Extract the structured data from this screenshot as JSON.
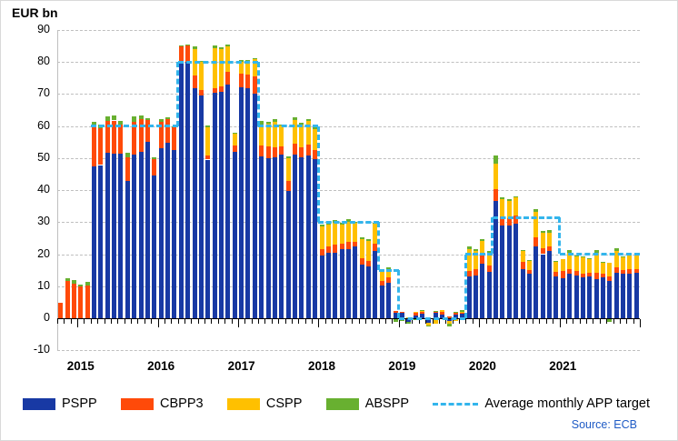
{
  "title": "EUR bn",
  "source": "Source: ECB",
  "colors": {
    "pspp": "#1839a4",
    "cbpp3": "#ff4a09",
    "cspp": "#ffc000",
    "abspp": "#68b030",
    "target_line": "#33b5ec",
    "grid": "#bfbfbf",
    "axis": "#000000",
    "source_text": "#1f5bc5",
    "figure_border": "#d9d9d9"
  },
  "legend": [
    {
      "label": "PSPP",
      "type": "swatch",
      "color": "#1839a4"
    },
    {
      "label": "CBPP3",
      "type": "swatch",
      "color": "#ff4a09"
    },
    {
      "label": "CSPP",
      "type": "swatch",
      "color": "#ffc000"
    },
    {
      "label": "ABSPP",
      "type": "swatch",
      "color": "#68b030"
    },
    {
      "label": "Average monthly APP target",
      "type": "dashed-line",
      "color": "#33b5ec"
    }
  ],
  "y_axis": {
    "ticks": [
      90,
      80,
      70,
      60,
      50,
      40,
      30,
      20,
      10,
      0,
      -10
    ],
    "min": -10,
    "max": 90
  },
  "x_axis": {
    "year_labels": [
      "2015",
      "2016",
      "2017",
      "2018",
      "2019",
      "2020",
      "2021"
    ]
  },
  "chart_data": {
    "type": "bar",
    "subtype": "stacked-monthly-bars-with-step-target-line",
    "unit": "EUR bn",
    "columns": [
      "month",
      "PSPP",
      "CBPP3",
      "CSPP",
      "ABSPP"
    ],
    "months": [
      [
        "2014-10",
        0,
        4.8,
        0,
        0
      ],
      [
        "2014-11",
        0,
        11.5,
        0,
        0.9
      ],
      [
        "2014-12",
        0,
        10.8,
        0,
        1.0
      ],
      [
        "2015-01",
        0,
        10.0,
        0,
        0.5
      ],
      [
        "2015-02",
        0,
        10.2,
        0,
        1.1
      ],
      [
        "2015-03",
        47.5,
        12.5,
        0,
        1.2
      ],
      [
        "2015-04",
        47.8,
        11.5,
        0,
        1.2
      ],
      [
        "2015-05",
        51.6,
        10.0,
        0,
        1.3
      ],
      [
        "2015-06",
        51.4,
        10.3,
        0,
        1.6
      ],
      [
        "2015-07",
        51.4,
        9.1,
        0,
        1.0
      ],
      [
        "2015-08",
        42.8,
        7.5,
        0,
        1.2
      ],
      [
        "2015-09",
        51.0,
        10.4,
        0,
        1.6
      ],
      [
        "2015-10",
        52.0,
        10.2,
        0,
        1.1
      ],
      [
        "2015-11",
        55.1,
        6.8,
        0,
        0.6
      ],
      [
        "2015-12",
        44.5,
        5.2,
        0,
        0.6
      ],
      [
        "2016-01",
        53.0,
        8.2,
        0,
        1.0
      ],
      [
        "2016-02",
        54.8,
        7.2,
        0,
        0.8
      ],
      [
        "2016-03",
        52.5,
        7.0,
        0,
        0.5
      ],
      [
        "2016-04",
        79.3,
        5.6,
        0,
        0.3
      ],
      [
        "2016-05",
        80.0,
        5.0,
        0,
        0.5
      ],
      [
        "2016-06",
        71.7,
        4.0,
        8.3,
        0.8
      ],
      [
        "2016-07",
        69.4,
        1.9,
        8.9,
        0.1
      ],
      [
        "2016-08",
        49.5,
        1.4,
        8.7,
        0.6
      ],
      [
        "2016-09",
        70.3,
        1.4,
        12.5,
        1.0
      ],
      [
        "2016-10",
        70.6,
        1.6,
        11.8,
        0.5
      ],
      [
        "2016-11",
        73.0,
        3.8,
        8.0,
        0.7
      ],
      [
        "2016-12",
        52.0,
        1.9,
        3.6,
        0.5
      ],
      [
        "2017-01",
        72.1,
        4.3,
        3.6,
        0.6
      ],
      [
        "2017-02",
        71.7,
        4.3,
        4.1,
        0.4
      ],
      [
        "2017-03",
        70.2,
        5.2,
        5.4,
        0.4
      ],
      [
        "2017-04",
        50.5,
        3.5,
        6.5,
        1.0
      ],
      [
        "2017-05",
        50.0,
        3.5,
        7.3,
        0.5
      ],
      [
        "2017-06",
        50.2,
        3.0,
        8.2,
        0.8
      ],
      [
        "2017-07",
        51.0,
        2.5,
        6.6,
        0.4
      ],
      [
        "2017-08",
        39.8,
        3.0,
        7.0,
        0.7
      ],
      [
        "2017-09",
        51.2,
        3.4,
        7.3,
        0.8
      ],
      [
        "2017-10",
        50.3,
        3.1,
        7.0,
        0.6
      ],
      [
        "2017-11",
        50.8,
        3.5,
        7.2,
        0.5
      ],
      [
        "2017-12",
        49.6,
        2.9,
        6.5,
        0.5
      ],
      [
        "2018-01",
        19.6,
        2.0,
        7.0,
        0.7
      ],
      [
        "2018-02",
        20.3,
        2.0,
        7.0,
        0.7
      ],
      [
        "2018-03",
        20.5,
        2.4,
        7.0,
        0.8
      ],
      [
        "2018-04",
        21.5,
        1.7,
        6.0,
        0.6
      ],
      [
        "2018-05",
        21.7,
        2.0,
        6.5,
        0.7
      ],
      [
        "2018-06",
        22.4,
        1.5,
        5.8,
        0.3
      ],
      [
        "2018-07",
        16.7,
        2.1,
        5.9,
        0.5
      ],
      [
        "2018-08",
        16.3,
        1.7,
        6.0,
        0.6
      ],
      [
        "2018-09",
        21.0,
        2.2,
        6.2,
        0.5
      ],
      [
        "2018-10",
        10.2,
        1.3,
        3.0,
        0.4
      ],
      [
        "2018-11",
        11.0,
        1.7,
        2.6,
        0.6
      ],
      [
        "2018-12",
        1.8,
        0.4,
        0,
        -1.2
      ],
      [
        "2019-01",
        1.6,
        0.4,
        0,
        -0.9
      ],
      [
        "2019-02",
        -1.2,
        0,
        0.4,
        -0.4
      ],
      [
        "2019-03",
        0.9,
        0.7,
        0.5,
        -0.6
      ],
      [
        "2019-04",
        1.3,
        0.6,
        0.4,
        0.2
      ],
      [
        "2019-05",
        -1.4,
        0.4,
        -0.8,
        -0.3
      ],
      [
        "2019-06",
        1.7,
        0.3,
        -1.8,
        0.2
      ],
      [
        "2019-07",
        1.1,
        0.9,
        0.5,
        -0.3
      ],
      [
        "2019-08",
        -0.9,
        0.6,
        -0.7,
        -1.0
      ],
      [
        "2019-09",
        1.2,
        0.6,
        -0.9,
        0.3
      ],
      [
        "2019-10",
        1.4,
        0.4,
        0.3,
        0.4
      ],
      [
        "2019-11",
        13.0,
        1.8,
        6.7,
        0.9
      ],
      [
        "2019-12",
        13.4,
        1.9,
        5.7,
        0.7
      ],
      [
        "2020-01",
        17.0,
        2.6,
        4.6,
        0.4
      ],
      [
        "2020-02",
        14.6,
        1.9,
        4.0,
        0.6
      ],
      [
        "2020-03",
        36.7,
        3.5,
        8.0,
        2.5
      ],
      [
        "2020-04",
        28.9,
        3.0,
        5.4,
        0.5
      ],
      [
        "2020-05",
        28.8,
        2.3,
        5.6,
        0.5
      ],
      [
        "2020-06",
        29.5,
        2.5,
        5.7,
        0.4
      ],
      [
        "2020-07",
        15.3,
        2.2,
        3.5,
        0.3
      ],
      [
        "2020-08",
        13.9,
        1.0,
        3.0,
        0.3
      ],
      [
        "2020-09",
        22.4,
        2.8,
        8.0,
        0.8
      ],
      [
        "2020-10",
        20.0,
        1.9,
        4.7,
        0.5
      ],
      [
        "2020-11",
        21.0,
        1.5,
        4.3,
        0.8
      ],
      [
        "2020-12",
        13.0,
        1.4,
        3.2,
        0.3
      ],
      [
        "2021-01",
        12.5,
        2.3,
        3.7,
        -0.4
      ],
      [
        "2021-02",
        13.9,
        1.4,
        5.2,
        0.7
      ],
      [
        "2021-03",
        13.4,
        1.4,
        4.4,
        0.3
      ],
      [
        "2021-04",
        12.8,
        1.1,
        5.0,
        0.5
      ],
      [
        "2021-05",
        13.1,
        1.2,
        4.2,
        0.3
      ],
      [
        "2021-06",
        12.2,
        1.9,
        6.4,
        0.8
      ],
      [
        "2021-07",
        12.8,
        1.1,
        3.6,
        0.2
      ],
      [
        "2021-08",
        11.5,
        1.5,
        4.2,
        -1.0
      ],
      [
        "2021-09",
        14.1,
        1.7,
        5.2,
        0.9
      ],
      [
        "2021-10",
        13.9,
        1.2,
        4.0,
        0.2
      ],
      [
        "2021-11",
        14.0,
        1.3,
        4.5,
        0.3
      ],
      [
        "2021-12",
        14.1,
        1.2,
        4.5,
        0.2
      ]
    ],
    "target_line": {
      "name": "Average monthly APP target",
      "segments": [
        [
          "2015-03",
          "2016-03",
          60
        ],
        [
          "2016-04",
          "2017-03",
          80
        ],
        [
          "2017-04",
          "2017-12",
          60
        ],
        [
          "2018-01",
          "2018-09",
          30
        ],
        [
          "2018-10",
          "2018-12",
          15
        ],
        [
          "2019-01",
          "2019-10",
          0
        ],
        [
          "2019-11",
          "2020-02",
          20
        ],
        [
          "2020-03",
          "2020-12",
          31.4
        ],
        [
          "2021-01",
          "2021-12",
          20
        ]
      ]
    }
  }
}
